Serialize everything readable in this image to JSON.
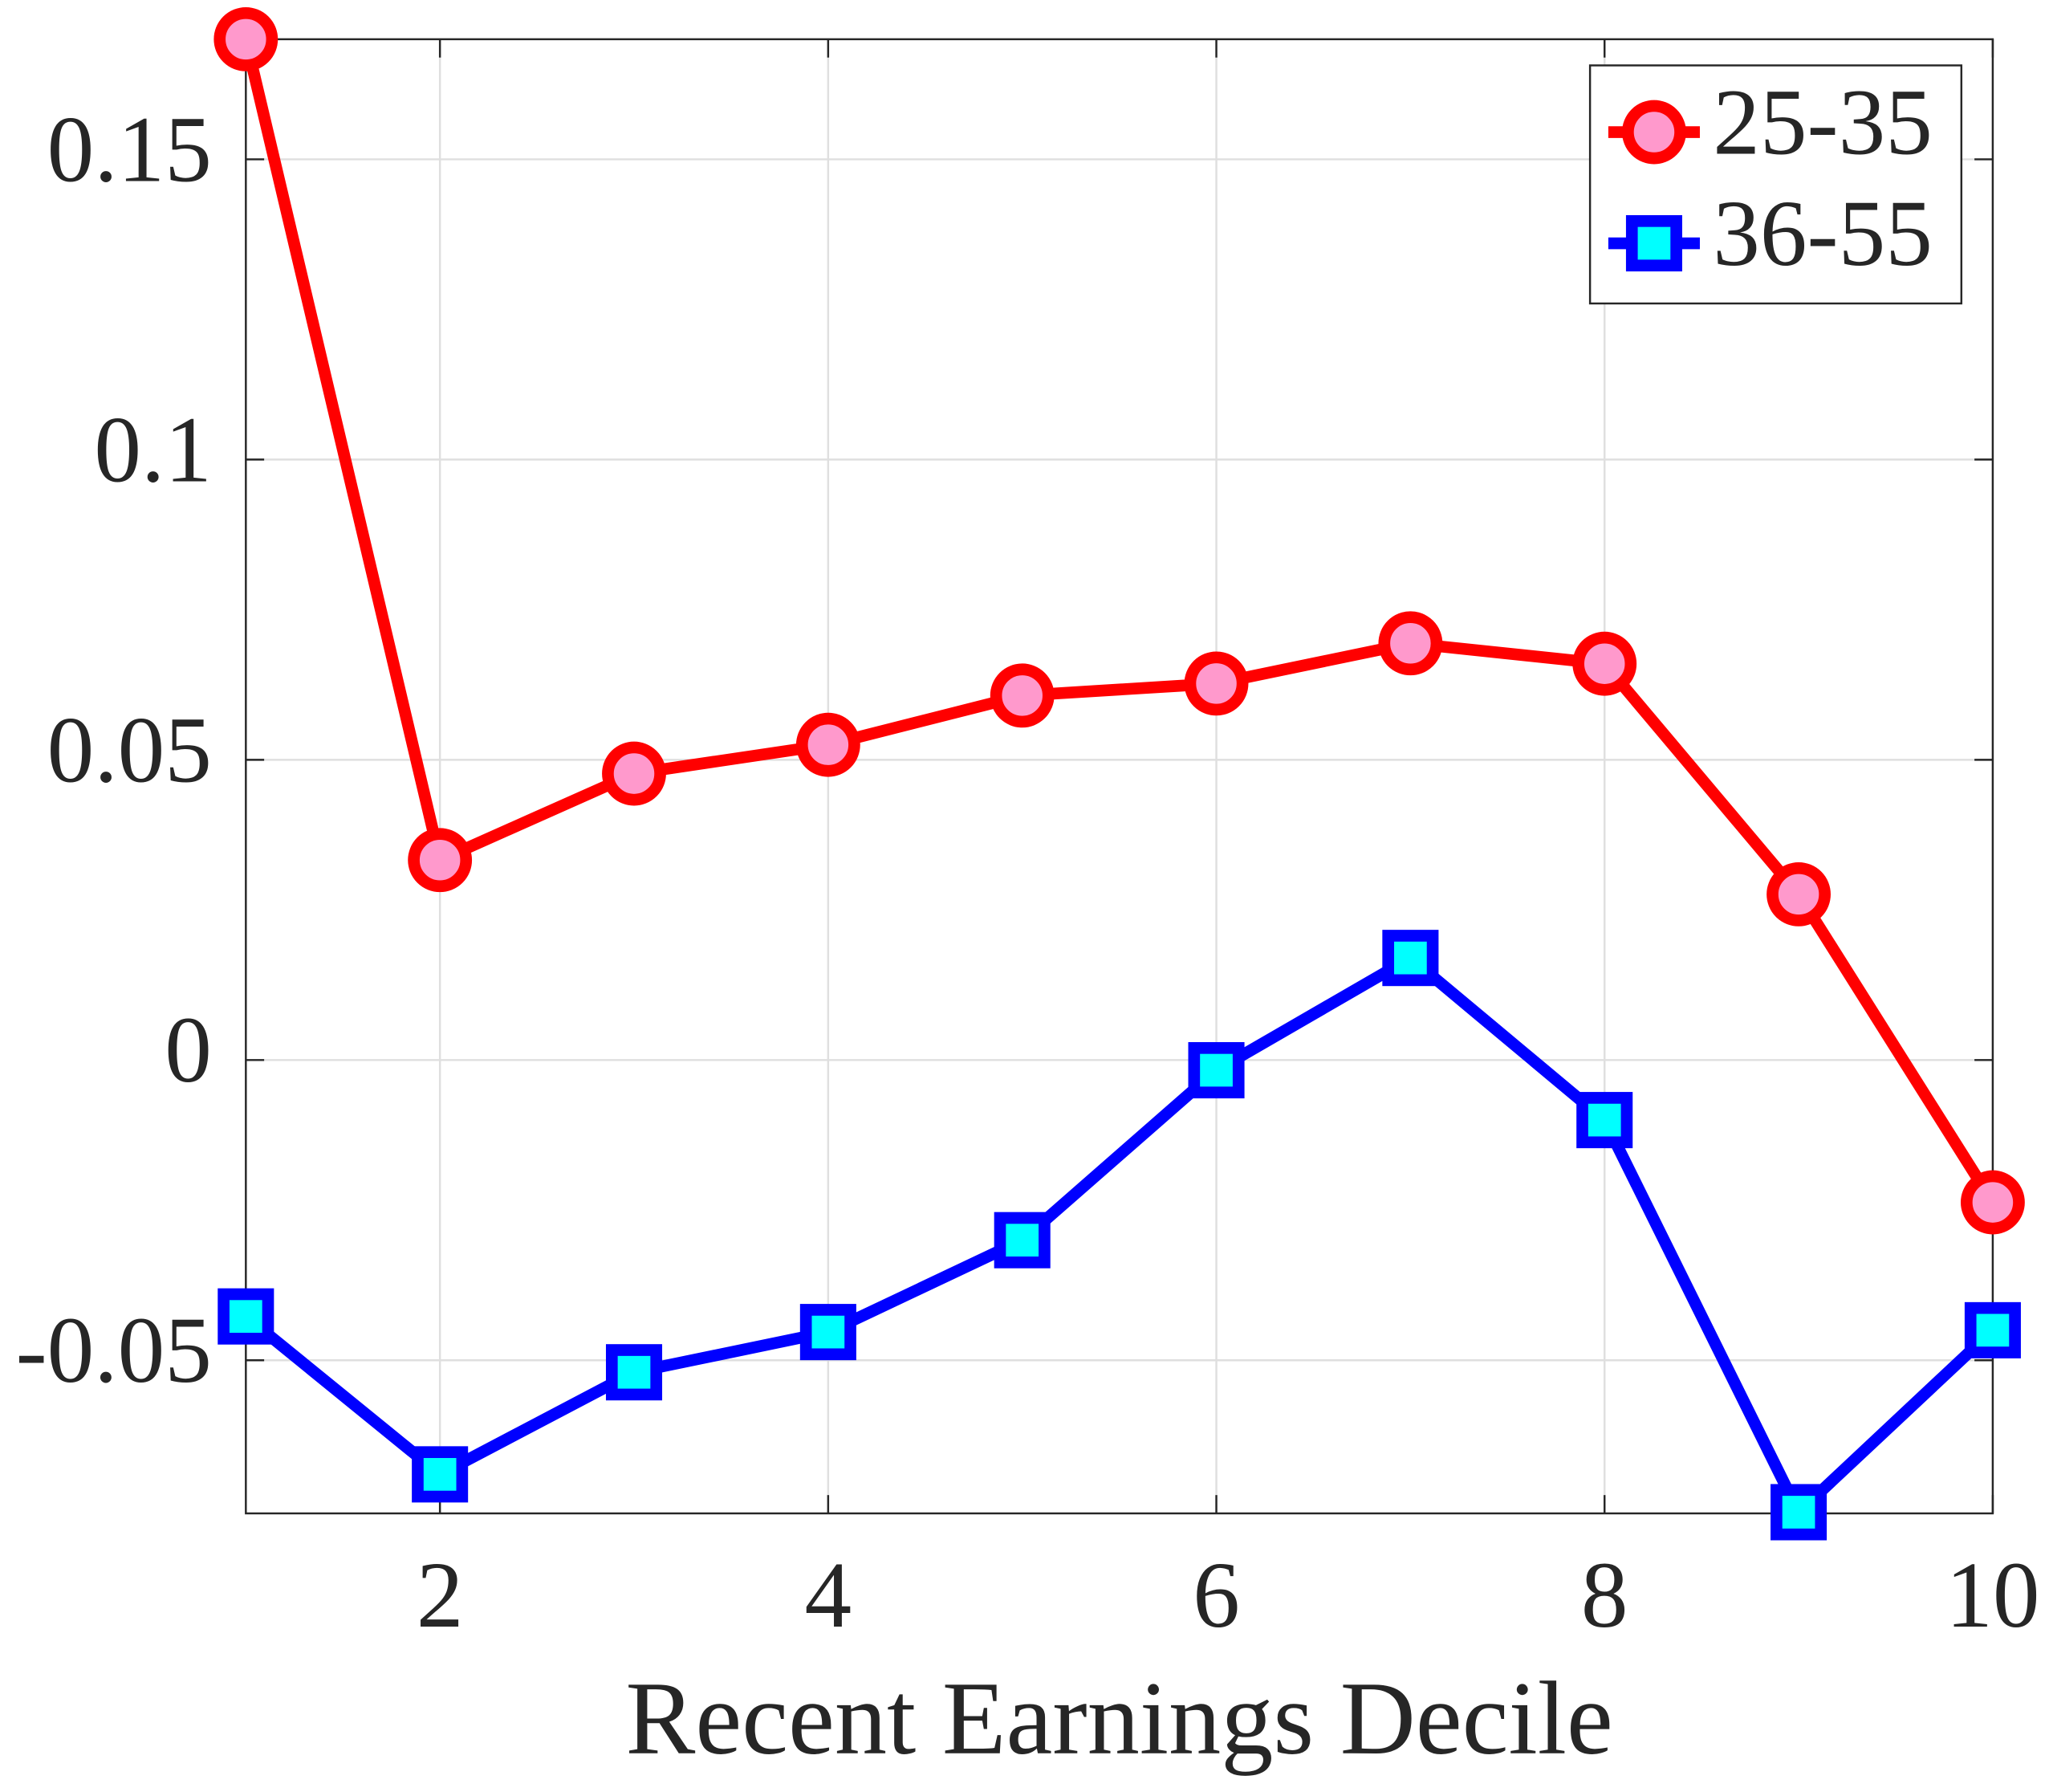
{
  "chart_data": {
    "type": "line",
    "x_label": "Recent Earnings Decile",
    "x": [
      1,
      2,
      3,
      4,
      5,
      6,
      7,
      8,
      9,
      10
    ],
    "series": [
      {
        "name": "25-35",
        "color": "#ff0000",
        "marker": "circle",
        "marker_fill": "#ff99cc",
        "values": [
          0.17,
          0.0333,
          0.0477,
          0.0525,
          0.0607,
          0.0627,
          0.0694,
          0.066,
          0.0276,
          -0.0237
        ]
      },
      {
        "name": "36-55",
        "color": "#0000ff",
        "marker": "square",
        "marker_fill": "#00ffff",
        "values": [
          -0.0427,
          -0.069,
          -0.052,
          -0.0453,
          -0.03,
          -0.0017,
          0.017,
          -0.01,
          -0.0753,
          -0.045
        ]
      }
    ],
    "xlim": [
      1,
      10
    ],
    "xticks": [
      2,
      4,
      6,
      8,
      10
    ],
    "ylim": [
      -0.0755,
      0.17
    ],
    "yticks": [
      {
        "value": -0.05,
        "label": "-0.05"
      },
      0,
      0.05,
      0.1,
      0.15
    ],
    "grid": true,
    "legend": "top-right"
  }
}
